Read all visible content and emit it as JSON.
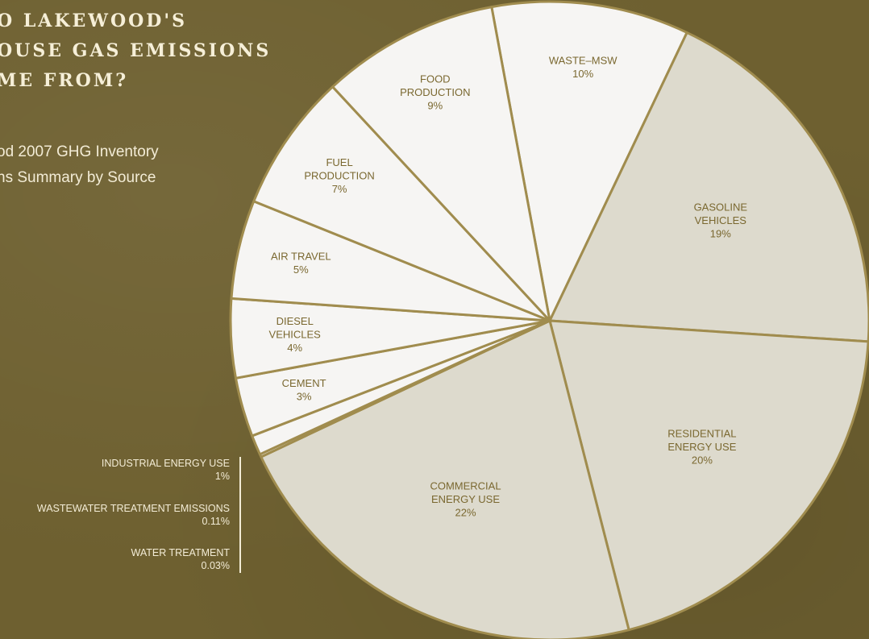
{
  "title": "O LAKEWOOD'S\nOUSE GAS EMISSIONS\nME FROM?",
  "subtitle": "od 2007 GHG Inventory\nns Summary by Source",
  "colors": {
    "background": "#6e6030",
    "light_slice": "#f6f5f3",
    "dark_slice": "#dddacd",
    "slice_border": "#a08c4e",
    "label_text": "#7a6830"
  },
  "chart_data": {
    "type": "pie",
    "title": "",
    "slices": [
      {
        "label": [
          "WASTE–MSW",
          "10%"
        ],
        "value": 10,
        "shade": "light"
      },
      {
        "label": [
          "GASOLINE",
          "VEHICLES",
          "19%"
        ],
        "value": 19,
        "shade": "dark"
      },
      {
        "label": [
          "RESIDENTIAL",
          "ENERGY USE",
          "20%"
        ],
        "value": 20,
        "shade": "dark"
      },
      {
        "label": [
          "COMMERCIAL",
          "ENERGY USE",
          "22%"
        ],
        "value": 22,
        "shade": "dark"
      },
      {
        "label": [],
        "value": 0.14,
        "shade": "light"
      },
      {
        "label": [],
        "value": 1,
        "shade": "light"
      },
      {
        "label": [
          "CEMENT",
          "3%"
        ],
        "value": 3,
        "shade": "light"
      },
      {
        "label": [
          "DIESEL",
          "VEHICLES",
          "4%"
        ],
        "value": 4,
        "shade": "light"
      },
      {
        "label": [
          "AIR TRAVEL",
          "5%"
        ],
        "value": 5,
        "shade": "light"
      },
      {
        "label": [
          "FUEL",
          "PRODUCTION",
          "7%"
        ],
        "value": 7,
        "shade": "light"
      },
      {
        "label": [
          "FOOD",
          "PRODUCTION",
          "9%"
        ],
        "value": 9,
        "shade": "light"
      }
    ]
  },
  "callouts": [
    {
      "name": "INDUSTRIAL ENERGY USE",
      "pct": "1%"
    },
    {
      "name": "WASTEWATER TREATMENT EMISSIONS",
      "pct": "0.11%"
    },
    {
      "name": "WATER TREATMENT",
      "pct": "0.03%"
    }
  ]
}
